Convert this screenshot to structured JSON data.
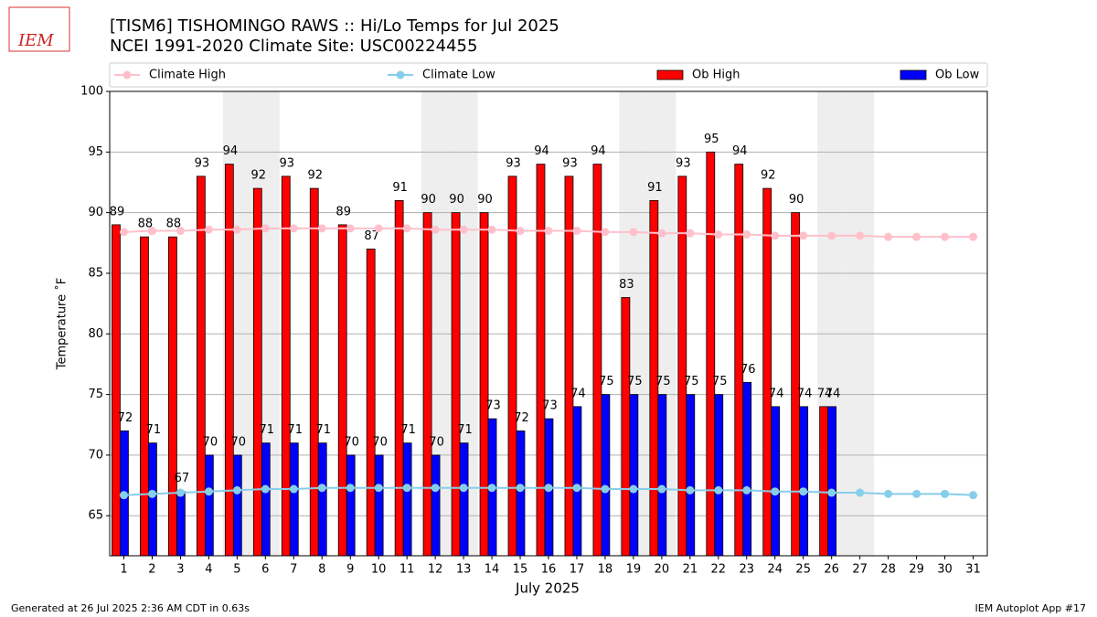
{
  "chart_data": {
    "type": "bar",
    "logo": "IEM",
    "title": "[TISM6] TISHOMINGO RAWS :: Hi/Lo Temps for Jul 2025",
    "subtitle": "NCEI 1991-2020 Climate Site: USC00224455",
    "xlabel": "July 2025",
    "ylabel": "Temperature ˚F",
    "footer_left": "Generated at 26 Jul 2025 2:36 AM CDT in 0.63s",
    "footer_right": "IEM Autoplot App #17",
    "x": [
      1,
      2,
      3,
      4,
      5,
      6,
      7,
      8,
      9,
      10,
      11,
      12,
      13,
      14,
      15,
      16,
      17,
      18,
      19,
      20,
      21,
      22,
      23,
      24,
      25,
      26,
      27,
      28,
      29,
      30,
      31
    ],
    "xlim": [
      0.5,
      31.5
    ],
    "ylim": [
      61.7,
      100
    ],
    "yticks": [
      65,
      70,
      75,
      80,
      85,
      90,
      95,
      100
    ],
    "grid": true,
    "shaded_days": [
      5,
      6,
      12,
      13,
      19,
      20,
      26,
      27
    ],
    "series": [
      {
        "name": "Climate High",
        "type": "line",
        "color": "#ffc0cb",
        "values": [
          88.4,
          88.5,
          88.5,
          88.6,
          88.6,
          88.7,
          88.7,
          88.7,
          88.7,
          88.7,
          88.7,
          88.6,
          88.6,
          88.6,
          88.5,
          88.5,
          88.5,
          88.4,
          88.4,
          88.3,
          88.3,
          88.2,
          88.2,
          88.1,
          88.1,
          88.1,
          88.1,
          88.0,
          88.0,
          88.0,
          88.0
        ]
      },
      {
        "name": "Climate Low",
        "type": "line",
        "color": "#87ceeb",
        "values": [
          66.7,
          66.8,
          66.9,
          67.0,
          67.1,
          67.2,
          67.2,
          67.3,
          67.3,
          67.3,
          67.3,
          67.3,
          67.3,
          67.3,
          67.3,
          67.3,
          67.3,
          67.2,
          67.2,
          67.2,
          67.1,
          67.1,
          67.1,
          67.0,
          67.0,
          66.9,
          66.9,
          66.8,
          66.8,
          66.8,
          66.7
        ]
      },
      {
        "name": "Ob High",
        "type": "bar",
        "color": "#ff0000",
        "values": [
          89,
          88,
          88,
          93,
          94,
          92,
          93,
          92,
          89,
          87,
          91,
          90,
          90,
          90,
          93,
          94,
          93,
          94,
          83,
          91,
          93,
          95,
          94,
          92,
          90,
          74,
          null,
          null,
          null,
          null,
          null
        ]
      },
      {
        "name": "Ob Low",
        "type": "bar",
        "color": "#0000ff",
        "values": [
          72,
          71,
          67,
          70,
          70,
          71,
          71,
          71,
          70,
          70,
          71,
          70,
          71,
          73,
          72,
          73,
          74,
          75,
          75,
          75,
          75,
          75,
          76,
          74,
          74,
          74,
          null,
          null,
          null,
          null,
          null
        ]
      }
    ]
  }
}
